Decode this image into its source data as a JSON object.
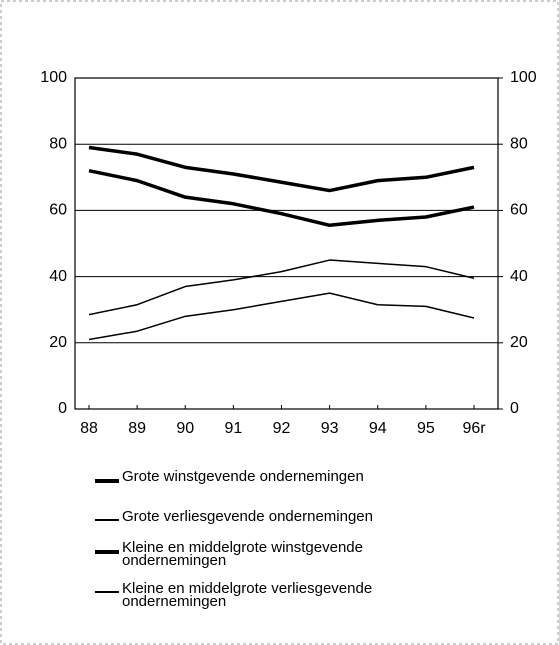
{
  "chart_data": {
    "type": "line",
    "categories": [
      "88",
      "89",
      "90",
      "91",
      "92",
      "93",
      "94",
      "95",
      "96r"
    ],
    "series": [
      {
        "name": "Grote winstgevende ondernemingen",
        "color": "#000000",
        "line_width": 3.5,
        "values": [
          79,
          77,
          73,
          71,
          68.5,
          66,
          69,
          70,
          73
        ]
      },
      {
        "name": "Grote verliesgevende ondernemingen",
        "color": "#000000",
        "line_width": 1.5,
        "values": [
          21,
          23.5,
          28,
          30,
          32.5,
          35,
          31.5,
          31,
          27.5
        ]
      },
      {
        "name": "Kleine en middelgrote winstgevende ondernemingen",
        "color": "#000000",
        "line_width": 3.5,
        "values": [
          72,
          69,
          64,
          62,
          59,
          55.5,
          57,
          58,
          61
        ]
      },
      {
        "name": "Kleine en middelgrote verliesgevende ondernemingen",
        "color": "#000000",
        "line_width": 1.5,
        "values": [
          28.5,
          31.5,
          37,
          39,
          41.5,
          45,
          44,
          43,
          39.5
        ]
      }
    ],
    "ylim": [
      0,
      100
    ],
    "yticks": [
      0,
      20,
      40,
      60,
      80,
      100
    ],
    "y2lim": [
      0,
      100
    ],
    "y2ticks": [
      0,
      20,
      40,
      60,
      80,
      100
    ],
    "grid": true
  }
}
